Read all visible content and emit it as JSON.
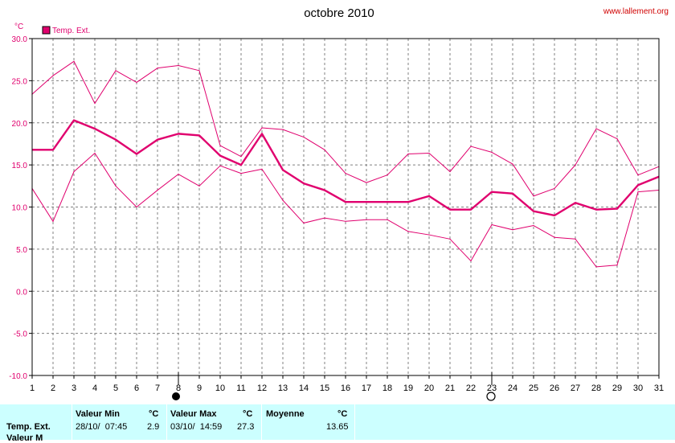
{
  "header": {
    "title": "octobre 2010",
    "source": "www.lallement.org",
    "unit": "°C"
  },
  "colors": {
    "series": "#e0006e",
    "grid": "#808080",
    "axis": "#000000",
    "stats_bg": "#ccffff"
  },
  "chart_data": {
    "type": "line",
    "title": "octobre 2010",
    "ylabel": "°C",
    "ylim": [
      -10,
      30
    ],
    "xlim": [
      1,
      31
    ],
    "grid": true,
    "legend": "top-left",
    "yticks": [
      "30.0",
      "25.0",
      "20.0",
      "15.0",
      "10.0",
      "5.0",
      "0.0",
      "-5.0",
      "-10.0"
    ],
    "x": [
      1,
      2,
      3,
      4,
      5,
      6,
      7,
      8,
      9,
      10,
      11,
      12,
      13,
      14,
      15,
      16,
      17,
      18,
      19,
      20,
      21,
      22,
      23,
      24,
      25,
      26,
      27,
      28,
      29,
      30,
      31
    ],
    "series": [
      {
        "name": "Temp. Ext.",
        "role": "moyenne",
        "values": [
          16.8,
          16.8,
          20.3,
          19.3,
          18.0,
          16.3,
          18.0,
          18.7,
          18.5,
          16.1,
          15.0,
          18.7,
          14.4,
          12.8,
          12.0,
          10.6,
          10.6,
          10.6,
          10.6,
          11.3,
          9.7,
          9.7,
          11.8,
          11.6,
          9.5,
          9.0,
          10.5,
          9.7,
          9.8,
          12.6,
          13.6
        ]
      },
      {
        "role": "max",
        "values": [
          23.4,
          25.6,
          27.3,
          22.3,
          26.2,
          24.8,
          26.5,
          26.8,
          26.2,
          17.3,
          16.0,
          19.4,
          19.2,
          18.3,
          16.8,
          14.0,
          12.9,
          13.8,
          16.3,
          16.4,
          14.2,
          17.2,
          16.5,
          15.1,
          11.3,
          12.2,
          15.0,
          19.3,
          18.1,
          13.8,
          14.8
        ]
      },
      {
        "role": "min",
        "values": [
          12.2,
          8.3,
          14.2,
          16.4,
          12.5,
          10.0,
          12.0,
          13.9,
          12.5,
          14.9,
          14.0,
          14.5,
          10.8,
          8.1,
          8.7,
          8.3,
          8.5,
          8.5,
          7.1,
          6.7,
          6.2,
          3.6,
          7.9,
          7.3,
          7.8,
          6.4,
          6.2,
          2.9,
          3.1,
          11.8,
          12.0
        ]
      }
    ],
    "moon_phases": [
      {
        "day": 8,
        "phase": "new-moon"
      },
      {
        "day": 23,
        "phase": "full-moon"
      }
    ]
  },
  "stats": {
    "row_label": "Temp. Ext.",
    "row_label_2": "Valeur M",
    "min_header": "Valeur Min",
    "min_unit": "°C",
    "min_date": "28/10/  07:45",
    "min_value": "2.9",
    "max_header": "Valeur Max",
    "max_unit": "°C",
    "max_date": "03/10/  14:59",
    "max_value": "27.3",
    "avg_header": "Moyenne",
    "avg_unit": "°C",
    "avg_value": "13.65"
  }
}
